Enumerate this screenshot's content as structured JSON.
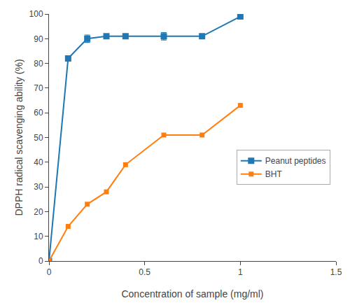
{
  "chart_data": {
    "type": "line",
    "xlabel": "Concentration of sample (mg/ml)",
    "ylabel": "DPPH radical scavenging ability (%)",
    "x": [
      0,
      0.1,
      0.2,
      0.3,
      0.4,
      0.6,
      0.8,
      1.0
    ],
    "series": [
      {
        "name": "Peanut peptides",
        "values": [
          0,
          82,
          90,
          91,
          91,
          91,
          91,
          99
        ],
        "error_y": [
          0,
          0,
          1.5,
          0,
          0,
          1.5,
          0,
          0
        ]
      },
      {
        "name": "BHT",
        "values": [
          0,
          14,
          23,
          28,
          39,
          51,
          51,
          63
        ]
      }
    ],
    "xlim": [
      0,
      1.5
    ],
    "ylim": [
      0,
      100
    ],
    "xticks": [
      0,
      0.5,
      1,
      1.5
    ],
    "yticks": [
      0,
      10,
      20,
      30,
      40,
      50,
      60,
      70,
      80,
      90,
      100
    ],
    "grid": false,
    "legend": "right",
    "marker": "square"
  }
}
